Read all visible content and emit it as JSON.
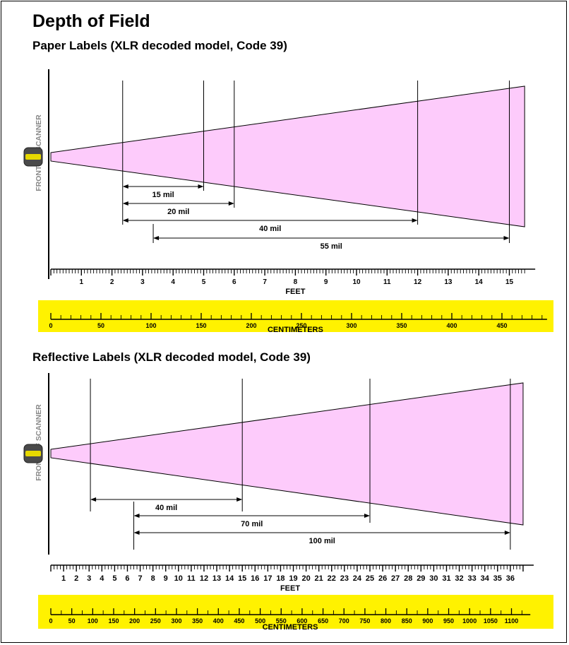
{
  "title": "Depth of Field",
  "colors": {
    "beam": "#FDCBFB",
    "scale_band": "#FFF200",
    "line": "#000000",
    "side_label": "#888888",
    "scanner_lens": "#E6D800"
  },
  "panels": [
    {
      "subtitle": "Paper Labels (XLR decoded model, Code 39)",
      "side_label": "FRONT OF SCANNER",
      "feet_axis_label": "FEET",
      "cm_axis_label": "CENTIMETERS",
      "feet_max": 15.5,
      "feet_ticks": [
        "1",
        "2",
        "3",
        "4",
        "5",
        "6",
        "7",
        "8",
        "9",
        "10",
        "11",
        "12",
        "13",
        "14",
        "15"
      ],
      "cm_ticks": [
        "0",
        "50",
        "100",
        "150",
        "200",
        "250",
        "300",
        "350",
        "400",
        "450"
      ],
      "ranges": [
        {
          "label": "15 mil",
          "near_ft": 2.35,
          "far_ft": 5.0
        },
        {
          "label": "20 mil",
          "near_ft": 2.35,
          "far_ft": 6.0
        },
        {
          "label": "40 mil",
          "near_ft": 2.35,
          "far_ft": 12.0
        },
        {
          "label": "55 mil",
          "near_ft": 3.35,
          "far_ft": 15.0
        }
      ]
    },
    {
      "subtitle": "Reflective Labels (XLR decoded model, Code 39)",
      "side_label": "FRONT OF SCANNER",
      "feet_axis_label": "FEET",
      "cm_axis_label": "CENTIMETERS",
      "feet_max": 37,
      "feet_ticks": [
        "1",
        "2",
        "3",
        "4",
        "5",
        "6",
        "7",
        "8",
        "9",
        "10",
        "11",
        "12",
        "13",
        "14",
        "15",
        "16",
        "17",
        "18",
        "19",
        "20",
        "21",
        "22",
        "23",
        "24",
        "25",
        "26",
        "27",
        "28",
        "29",
        "30",
        "31",
        "32",
        "33",
        "34",
        "35",
        "36"
      ],
      "cm_ticks": [
        "0",
        "50",
        "100",
        "150",
        "200",
        "250",
        "300",
        "350",
        "400",
        "450",
        "500",
        "550",
        "600",
        "650",
        "700",
        "750",
        "800",
        "850",
        "900",
        "950",
        "1000",
        "1050",
        "1100"
      ],
      "ranges": [
        {
          "label": "40 mil",
          "near_ft": 3.1,
          "far_ft": 15.0
        },
        {
          "label": "70 mil",
          "near_ft": 6.5,
          "far_ft": 25.0
        },
        {
          "label": "100 mil",
          "near_ft": 6.5,
          "far_ft": 36.0
        }
      ]
    }
  ]
}
